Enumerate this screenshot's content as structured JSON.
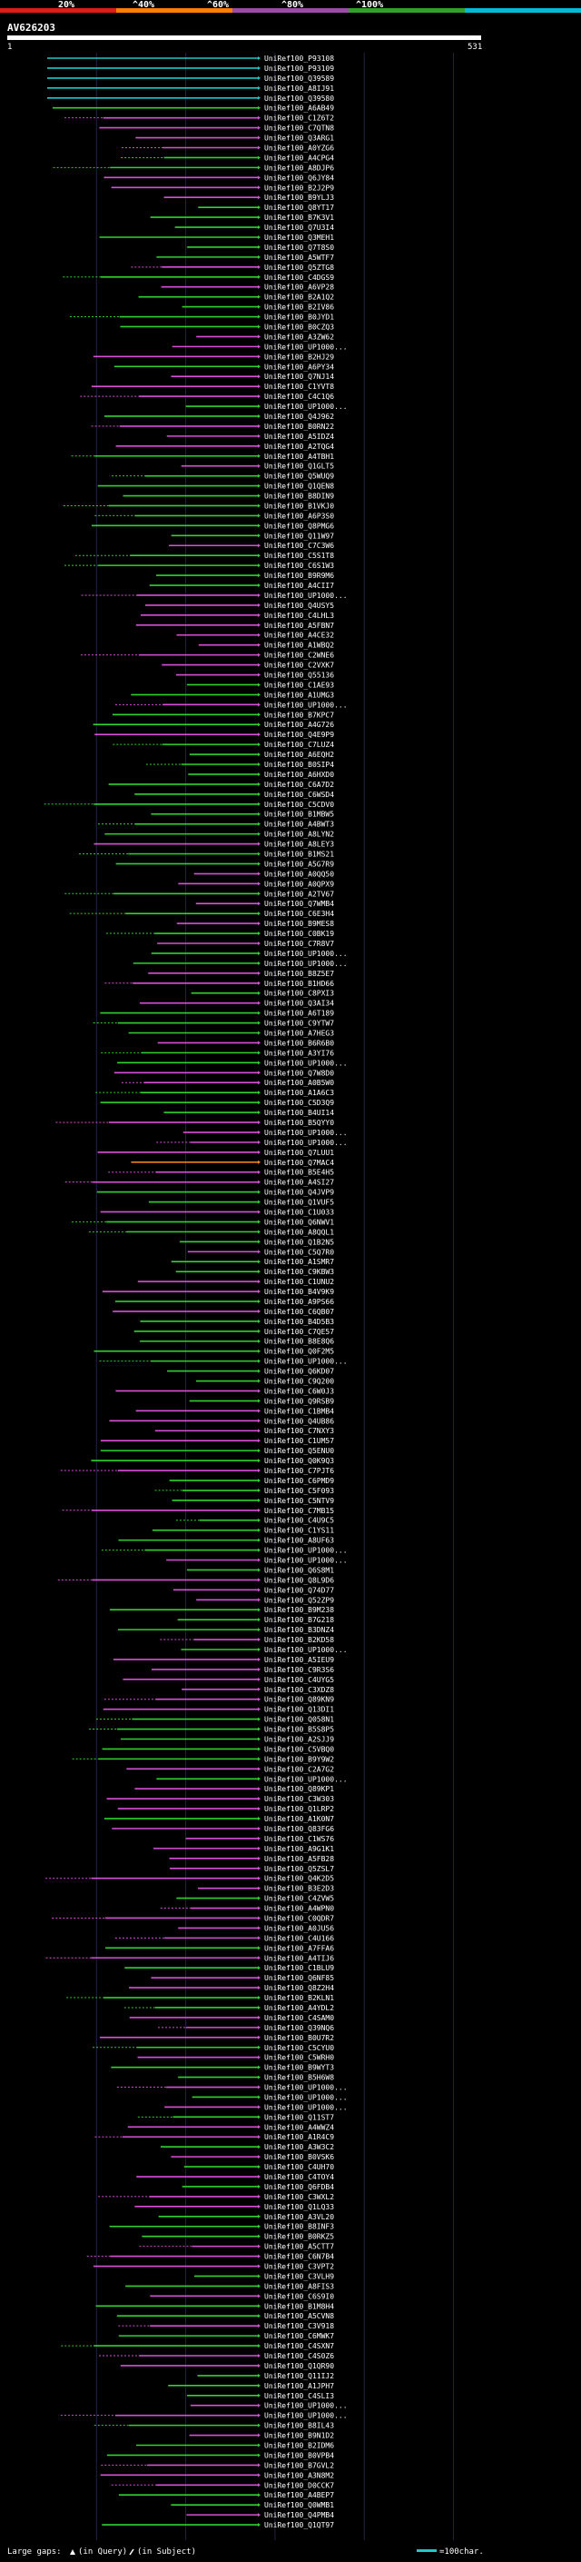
{
  "chart_data": {
    "type": "alignment-overview",
    "title": "AV626203",
    "query_length": 531,
    "axis_start_label": "1",
    "axis_end_label": "531",
    "scale_labels": [
      "20%",
      "^40%",
      "^60%",
      "^80%",
      "^100%"
    ],
    "scale_colors": [
      "#e31a1c",
      "#ff7f00",
      "#984ea3",
      "#33a02c",
      "#00bcd4"
    ],
    "footer": {
      "label": "Large gaps:",
      "query_gap_text": "(in Query)",
      "subject_gap_text": "(in Subject)",
      "scale_text": "=100char."
    },
    "hit_ids": [
      "UniRef100_P93108",
      "UniRef100_P93109",
      "UniRef100_Q39589",
      "UniRef100_A8IJ91",
      "UniRef100_Q39580",
      "UniRef100_A6AB49",
      "UniRef100_C1Z6T2",
      "UniRef100_C7QTN8",
      "UniRef100_Q3ARG1",
      "UniRef100_A0YZG6",
      "UniRef100_A4CPG4",
      "UniRef100_A8DJP6",
      "UniRef100_Q6JY84",
      "UniRef100_B2J2P9",
      "UniRef100_B9YLJ3",
      "UniRef100_Q8YT17",
      "UniRef100_B7K3V1",
      "UniRef100_Q7U3I4",
      "UniRef100_Q3MEH1",
      "UniRef100_Q7T8S0",
      "UniRef100_A5WTF7",
      "UniRef100_Q5ZTG8",
      "UniRef100_C4DGS9",
      "UniRef100_A6VP28",
      "UniRef100_B2A1Q2",
      "UniRef100_B2IV86",
      "UniRef100_B0JYD1",
      "UniRef100_B0CZQ3",
      "UniRef100_A3ZW62",
      "UniRef100_UP1000...",
      "UniRef100_B2HJ29",
      "UniRef100_A6PY34",
      "UniRef100_Q7NJ14",
      "UniRef100_C1YVT8",
      "UniRef100_C4C1Q6",
      "UniRef100_UP1000...",
      "UniRef100_Q4J962",
      "UniRef100_B0RN22",
      "UniRef100_A5IDZ4",
      "UniRef100_A2TQG4",
      "UniRef100_A4TBH1",
      "UniRef100_Q1GLT5",
      "UniRef100_Q5WUQ9",
      "UniRef100_Q1QEN8",
      "UniRef100_B8DIN9",
      "UniRef100_B1VKJ0",
      "UniRef100_A6P3S0",
      "UniRef100_Q8PMG6",
      "UniRef100_Q11W97",
      "UniRef100_C7C3W6",
      "UniRef100_C5S1T8",
      "UniRef100_C6S1W3",
      "UniRef100_B9R9M6",
      "UniRef100_A4CII7",
      "UniRef100_UP1000...",
      "UniRef100_Q4USY5",
      "UniRef100_C4LHL3",
      "UniRef100_A5FBN7",
      "UniRef100_A4CE32",
      "UniRef100_A1WBQ2",
      "UniRef100_C2WNE6",
      "UniRef100_C2VXK7",
      "UniRef100_Q55136",
      "UniRef100_C1AE93",
      "UniRef100_A1UMG3",
      "UniRef100_UP1000...",
      "UniRef100_B7KPC7",
      "UniRef100_A4G726",
      "UniRef100_Q4E9P9",
      "UniRef100_C7LUZ4",
      "UniRef100_A6EQH2",
      "UniRef100_B0SIP4",
      "UniRef100_A6HXD0",
      "UniRef100_C6A7D2",
      "UniRef100_C6WSD4",
      "UniRef100_C5CDV0",
      "UniRef100_B1MBW5",
      "UniRef100_A4BWT3",
      "UniRef100_A8LYN2",
      "UniRef100_A8LEY3",
      "UniRef100_B1MS21",
      "UniRef100_A5G7R9",
      "UniRef100_A0QQ50",
      "UniRef100_A0QPX9",
      "UniRef100_A2TV67",
      "UniRef100_Q7WMB4",
      "UniRef100_C6E3H4",
      "UniRef100_B9MES8",
      "UniRef100_C0BK19",
      "UniRef100_C7R8V7",
      "UniRef100_UP1000...",
      "UniRef100_UP1000...",
      "UniRef100_B8Z5E7",
      "UniRef100_B1HD66",
      "UniRef100_C8PXI3",
      "UniRef100_Q3AI34",
      "UniRef100_A6T189",
      "UniRef100_C9YTW7",
      "UniRef100_A7HEG3",
      "UniRef100_B6R6B0",
      "UniRef100_A3YI76",
      "UniRef100_UP1000...",
      "UniRef100_Q7W8D0",
      "UniRef100_A0B5W0",
      "UniRef100_A1A6C3",
      "UniRef100_C5D3Q9",
      "UniRef100_B4UI14",
      "UniRef100_B5QYY0",
      "UniRef100_UP1000...",
      "UniRef100_UP1000...",
      "UniRef100_Q7LUU1",
      "UniRef100_Q7MAC4",
      "UniRef100_B5E4H5",
      "UniRef100_A4SI27",
      "UniRef100_Q4JVP9",
      "UniRef100_Q1VUF5",
      "UniRef100_C1U033",
      "UniRef100_Q6NWV1",
      "UniRef100_A8QQL1",
      "UniRef100_Q1B2N5",
      "UniRef100_C5Q7R0",
      "UniRef100_A1SMR7",
      "UniRef100_C9KBW3",
      "UniRef100_C1UNU2",
      "UniRef100_B4V9K9",
      "UniRef100_A9PS66",
      "UniRef100_C6QB07",
      "UniRef100_B4D5B3",
      "UniRef100_C7QE57",
      "UniRef100_B8E8Q6",
      "UniRef100_Q0F2M5",
      "UniRef100_UP1000...",
      "UniRef100_Q6KD07",
      "UniRef100_C9Q200",
      "UniRef100_C6W0J3",
      "UniRef100_Q9RSB9",
      "UniRef100_C1BMB4",
      "UniRef100_Q4UB86",
      "UniRef100_C7NXY3",
      "UniRef100_C1UM57",
      "UniRef100_Q5ENU0",
      "UniRef100_Q0K9Q3",
      "UniRef100_C7PJT6",
      "UniRef100_C6PMD9",
      "UniRef100_C5F093",
      "UniRef100_C5NTV9",
      "UniRef100_C7MB15",
      "UniRef100_C4U9C5",
      "UniRef100_C1YS11",
      "UniRef100_A8UF63",
      "UniRef100_UP1000...",
      "UniRef100_UP1000...",
      "UniRef100_Q6S8M1",
      "UniRef100_Q8L9D6",
      "UniRef100_Q74D77",
      "UniRef100_Q52ZP9",
      "UniRef100_B9M238",
      "UniRef100_B7G218",
      "UniRef100_B3DNZ4",
      "UniRef100_B2KD58",
      "UniRef100_UP1000...",
      "UniRef100_A5IEU9",
      "UniRef100_C9R3S6",
      "UniRef100_C4UYG5",
      "UniRef100_C3XDZ8",
      "UniRef100_Q89KN9",
      "UniRef100_Q13DI1",
      "UniRef100_Q058N1",
      "UniRef100_B5S8P5",
      "UniRef100_A2SJJ9",
      "UniRef100_C5VBQ0",
      "UniRef100_B9Y9W2",
      "UniRef100_C2A7G2",
      "UniRef100_UP1000...",
      "UniRef100_Q89KP1",
      "UniRef100_C3W303",
      "UniRef100_Q1LRP2",
      "UniRef100_A1K0N7",
      "UniRef100_Q83FG6",
      "UniRef100_C1WS76",
      "UniRef100_A9G1K1",
      "UniRef100_A5FB28",
      "UniRef100_Q5ZSL7",
      "UniRef100_Q4K2D5",
      "UniRef100_B3E2D3",
      "UniRef100_C4ZVW5",
      "UniRef100_A4WPN0",
      "UniRef100_C0QDR7",
      "UniRef100_A0JU56",
      "UniRef100_C4U166",
      "UniRef100_A7FFA6",
      "UniRef100_A4TIJ6",
      "UniRef100_C1BLU9",
      "UniRef100_Q6NF85",
      "UniRef100_Q8Z2H4",
      "UniRef100_B2KLN1",
      "UniRef100_A4YDL2",
      "UniRef100_C4SAM0",
      "UniRef100_Q39NQ6",
      "UniRef100_B0U7R2",
      "UniRef100_C5CYU0",
      "UniRef100_C5WRH0",
      "UniRef100_B9WYT3",
      "UniRef100_B5H6W8",
      "UniRef100_UP1000...",
      "UniRef100_UP1000...",
      "UniRef100_UP1000...",
      "UniRef100_Q11ST7",
      "UniRef100_A4WWZ4",
      "UniRef100_A1R4C9",
      "UniRef100_A3W3C2",
      "UniRef100_B0VSK6",
      "UniRef100_C4UH70",
      "UniRef100_C4TOY4",
      "UniRef100_Q6FDB4",
      "UniRef100_C3WXL2",
      "UniRef100_Q1LQ33",
      "UniRef100_A3VL20",
      "UniRef100_B8INF3",
      "UniRef100_B0RKZ5",
      "UniRef100_A5CTT7",
      "UniRef100_C6N7B4",
      "UniRef100_C3VPT2",
      "UniRef100_C3VLH9",
      "UniRef100_A8FIS3",
      "UniRef100_C6S9I0",
      "UniRef100_B1M8H4",
      "UniRef100_A5CVN8",
      "UniRef100_C3V918",
      "UniRef100_C6MWK7",
      "UniRef100_C4SXN7",
      "UniRef100_C4S0Z6",
      "UniRef100_Q1QR90",
      "UniRef100_Q11IJ2",
      "UniRef100_A1JPH7",
      "UniRef100_C4SLI3",
      "UniRef100_UP1000...",
      "UniRef100_UP1000...",
      "UniRef100_B8IL43",
      "UniRef100_B9N1D2",
      "UniRef100_B2IDM6",
      "UniRef100_B0VPB4",
      "UniRef100_B7GVL2",
      "UniRef100_A3N8M2",
      "UniRef100_D0CCK7",
      "UniRef100_A4BEP7",
      "UniRef100_Q0WMB1",
      "UniRef100_Q4PMB4",
      "UniRef100_Q1QT97"
    ]
  }
}
